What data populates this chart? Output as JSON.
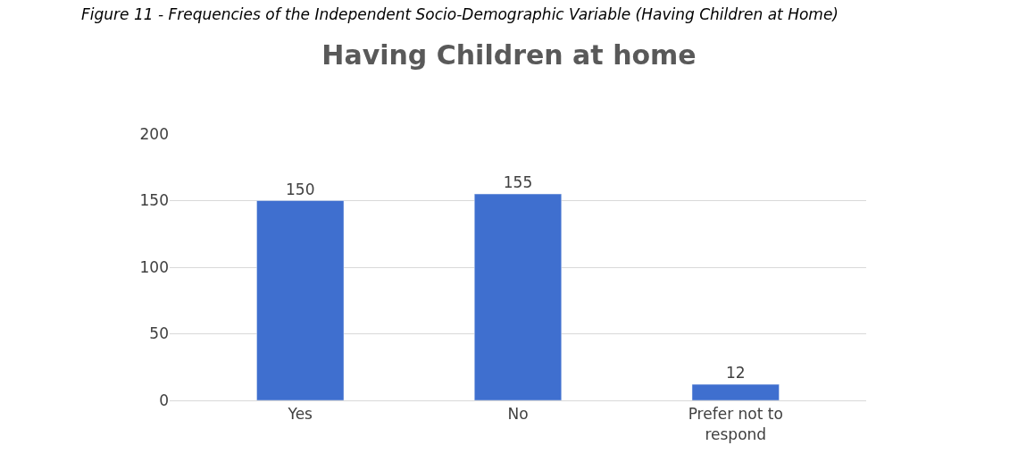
{
  "chart_data": {
    "type": "bar",
    "title": "Having Children at home",
    "annotations": [
      "Figure 11 - Frequencies of the Independent Socio-Demographic Variable (Having Children at Home)"
    ],
    "categories": [
      "Yes",
      "No",
      "Prefer not to respond"
    ],
    "values": [
      150,
      155,
      12
    ],
    "color": "#3f6fcf",
    "ylim": [
      0,
      200
    ],
    "yticks": [
      0,
      50,
      100,
      150,
      200
    ],
    "grid": "y",
    "data_labels": true
  }
}
